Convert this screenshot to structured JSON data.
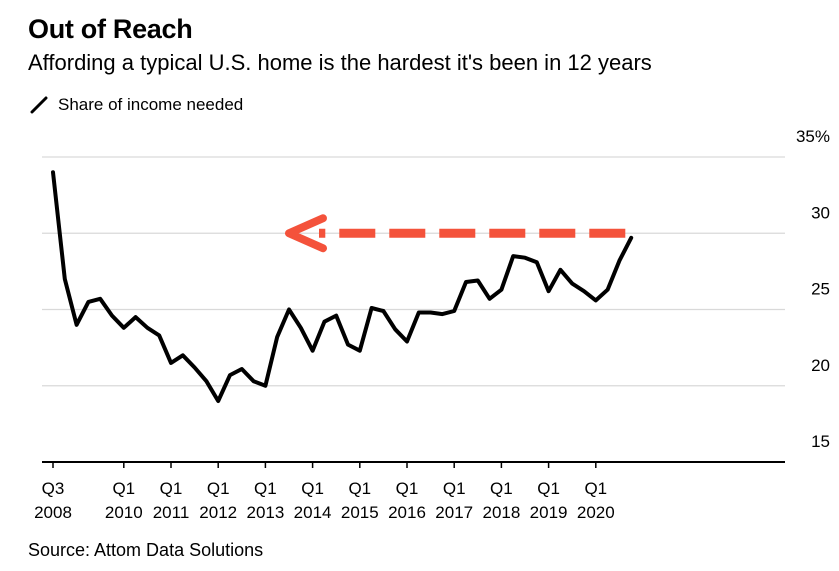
{
  "header": {
    "title": "Out of Reach",
    "subtitle": "Affording a typical U.S. home is the hardest it's been in 12 years",
    "legend_label": "Share of income needed"
  },
  "footer": {
    "source": "Source: Attom Data Solutions"
  },
  "colors": {
    "line": "#000000",
    "arrow": "#f4523b",
    "grid": "#d9d9d9",
    "axis": "#000000"
  },
  "chart_data": {
    "type": "line",
    "title": "Out of Reach",
    "subtitle": "Affording a typical U.S. home is the hardest it's been in 12 years",
    "xlabel": "",
    "ylabel": "Share of income needed",
    "ylim": [
      15,
      35
    ],
    "yticks": [
      {
        "value": 35,
        "label": "35%"
      },
      {
        "value": 30,
        "label": "30"
      },
      {
        "value": 25,
        "label": "25"
      },
      {
        "value": 20,
        "label": "20"
      },
      {
        "value": 15,
        "label": "15"
      }
    ],
    "x_start": "Q3 2008",
    "xticks": [
      {
        "index": 0,
        "top": "Q3",
        "bottom": "2008"
      },
      {
        "index": 6,
        "top": "Q1",
        "bottom": "2010"
      },
      {
        "index": 10,
        "top": "Q1",
        "bottom": "2011"
      },
      {
        "index": 14,
        "top": "Q1",
        "bottom": "2012"
      },
      {
        "index": 18,
        "top": "Q1",
        "bottom": "2013"
      },
      {
        "index": 22,
        "top": "Q1",
        "bottom": "2014"
      },
      {
        "index": 26,
        "top": "Q1",
        "bottom": "2015"
      },
      {
        "index": 30,
        "top": "Q1",
        "bottom": "2016"
      },
      {
        "index": 34,
        "top": "Q1",
        "bottom": "2017"
      },
      {
        "index": 38,
        "top": "Q1",
        "bottom": "2018"
      },
      {
        "index": 42,
        "top": "Q1",
        "bottom": "2019"
      },
      {
        "index": 46,
        "top": "Q1",
        "bottom": "2020"
      }
    ],
    "series": [
      {
        "name": "Share of income needed",
        "values": [
          34.0,
          27.0,
          24.0,
          25.5,
          25.7,
          24.6,
          23.8,
          24.5,
          23.8,
          23.3,
          21.5,
          22.0,
          21.2,
          20.3,
          19.0,
          20.7,
          21.1,
          20.3,
          20.0,
          23.2,
          25.0,
          23.8,
          22.3,
          24.2,
          24.6,
          22.7,
          22.3,
          25.1,
          24.9,
          23.7,
          22.9,
          24.8,
          24.8,
          24.7,
          24.9,
          26.8,
          26.9,
          25.7,
          26.3,
          28.5,
          28.4,
          28.1,
          26.2,
          27.6,
          26.7,
          26.2,
          25.6,
          26.3,
          28.2,
          29.7
        ]
      }
    ],
    "annotations": [
      {
        "type": "dashed-arrow",
        "from_value": 30.0,
        "to_value": 30.0,
        "from_index": 48.5,
        "to_index": 20.0,
        "description": "arrow pointing back to the comparable level"
      }
    ]
  }
}
